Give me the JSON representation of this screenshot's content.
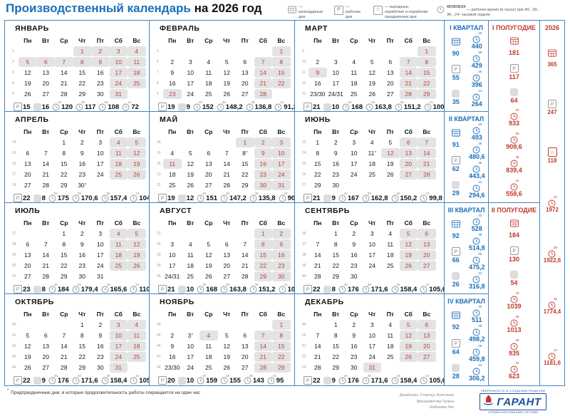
{
  "title": {
    "main": "Производственный календарь",
    "suffix": "на 2026 год"
  },
  "colors": {
    "blue": "#1b6fb8",
    "red": "#c0392b",
    "border": "#4187c3",
    "day_red": "#b8433c",
    "shade": "#e3e3e3",
    "icon_gray": "#8f8f8f"
  },
  "legend": [
    {
      "icon": "calendar-icon",
      "label": "— календарные дни"
    },
    {
      "icon": "workday-icon",
      "label": "— рабочие дни"
    },
    {
      "icon": "star-icon",
      "label": "— выходные, нерабочие и нерабочие праздничные дни"
    },
    {
      "icon": "clock-icon",
      "prefix": "40/39/36/24",
      "label": "— рабочее время (в часах) при 40-, 39-, 36-, 24- часовой неделе"
    }
  ],
  "weekday_headers": [
    "Пн",
    "Вт",
    "Ср",
    "Чт",
    "Пт",
    "Сб",
    "Вс"
  ],
  "hour_labels": [
    "40",
    "39",
    "36",
    "24"
  ],
  "months": [
    {
      "name": "ЯНВАРЬ",
      "weeks": [
        {
          "n": "1",
          "days": [
            "",
            "",
            "",
            "1o",
            "2o",
            "3o",
            "4o"
          ]
        },
        {
          "n": "2",
          "days": [
            "5o",
            "6o",
            "7o",
            "8o",
            "9o",
            "10o",
            "11o"
          ]
        },
        {
          "n": "3",
          "days": [
            "12",
            "13",
            "14",
            "15",
            "16",
            "17o",
            "18o"
          ]
        },
        {
          "n": "4",
          "days": [
            "19",
            "20",
            "21",
            "22",
            "23",
            "24o",
            "25o"
          ]
        },
        {
          "n": "5",
          "days": [
            "26",
            "27",
            "28",
            "29",
            "30",
            "31o",
            ""
          ]
        }
      ],
      "stats": {
        "work": "15",
        "off": "16",
        "h40": "120",
        "h39": "117",
        "h36": "108",
        "h24": "72"
      }
    },
    {
      "name": "ФЕВРАЛЬ",
      "weeks": [
        {
          "n": "5",
          "days": [
            "",
            "",
            "",
            "",
            "",
            "",
            "1o"
          ]
        },
        {
          "n": "6",
          "days": [
            "2",
            "3",
            "4",
            "5",
            "6",
            "7o",
            "8o"
          ]
        },
        {
          "n": "7",
          "days": [
            "9",
            "10",
            "11",
            "12",
            "13",
            "14o",
            "15o"
          ]
        },
        {
          "n": "8",
          "days": [
            "16",
            "17",
            "18",
            "19",
            "20",
            "21o",
            "22o"
          ]
        },
        {
          "n": "9",
          "days": [
            "23o",
            "24",
            "25",
            "26",
            "27",
            "28o",
            ""
          ]
        }
      ],
      "stats": {
        "work": "19",
        "off": "9",
        "h40": "152",
        "h39": "148,2",
        "h36": "136,8",
        "h24": "91,2"
      }
    },
    {
      "name": "МАРТ",
      "weeks": [
        {
          "n": "9",
          "days": [
            "",
            "",
            "",
            "",
            "",
            "",
            "1o"
          ]
        },
        {
          "n": "10",
          "days": [
            "2",
            "3",
            "4",
            "5",
            "6",
            "7o",
            "8o"
          ]
        },
        {
          "n": "11",
          "days": [
            "9o",
            "10",
            "11",
            "12",
            "13",
            "14o",
            "15o"
          ]
        },
        {
          "n": "12",
          "days": [
            "16",
            "17",
            "18",
            "19",
            "20",
            "21o",
            "22o"
          ]
        },
        {
          "n": "13",
          "days": [
            "23/30",
            "24/31",
            "25",
            "26",
            "27",
            "28o",
            "29o"
          ]
        }
      ],
      "stats": {
        "work": "21",
        "off": "10",
        "h40": "168",
        "h39": "163,8",
        "h36": "151,2",
        "h24": "100,8"
      }
    },
    {
      "name": "АПРЕЛЬ",
      "weeks": [
        {
          "n": "14",
          "days": [
            "",
            "",
            "1",
            "2",
            "3",
            "4o",
            "5o"
          ]
        },
        {
          "n": "15",
          "days": [
            "6",
            "7",
            "8",
            "9",
            "10",
            "11o",
            "12o"
          ]
        },
        {
          "n": "16",
          "days": [
            "13",
            "14",
            "15",
            "16",
            "17",
            "18o",
            "19o"
          ]
        },
        {
          "n": "17",
          "days": [
            "20",
            "21",
            "22",
            "23",
            "24",
            "25o",
            "26o"
          ]
        },
        {
          "n": "18",
          "days": [
            "27",
            "28",
            "29",
            "30p",
            "",
            "",
            ""
          ]
        }
      ],
      "stats": {
        "work": "22",
        "off": "8",
        "h40": "175",
        "h39": "170,6",
        "h36": "157,4",
        "h24": "104,6"
      }
    },
    {
      "name": "МАЙ",
      "weeks": [
        {
          "n": "18",
          "days": [
            "",
            "",
            "",
            "",
            "1o",
            "2o",
            "3o"
          ]
        },
        {
          "n": "19",
          "days": [
            "4",
            "5",
            "6",
            "7",
            "8p",
            "9o",
            "10o"
          ]
        },
        {
          "n": "20",
          "days": [
            "11o",
            "12",
            "13",
            "14",
            "15",
            "16o",
            "17o"
          ]
        },
        {
          "n": "21",
          "days": [
            "18",
            "19",
            "20",
            "21",
            "22",
            "23o",
            "24o"
          ]
        },
        {
          "n": "22",
          "days": [
            "25",
            "26",
            "27",
            "28",
            "29",
            "30o",
            "31o"
          ]
        }
      ],
      "stats": {
        "work": "19",
        "off": "12",
        "h40": "151",
        "h39": "147,2",
        "h36": "135,8",
        "h24": "90,2"
      }
    },
    {
      "name": "ИЮНЬ",
      "weeks": [
        {
          "n": "23",
          "days": [
            "1",
            "2",
            "3",
            "4",
            "5",
            "6o",
            "7o"
          ]
        },
        {
          "n": "24",
          "days": [
            "8",
            "9",
            "10",
            "11p",
            "12o",
            "13o",
            "14o"
          ]
        },
        {
          "n": "25",
          "days": [
            "15",
            "16",
            "17",
            "18",
            "19",
            "20o",
            "21o"
          ]
        },
        {
          "n": "26",
          "days": [
            "22",
            "23",
            "24",
            "25",
            "26",
            "27o",
            "28o"
          ]
        },
        {
          "n": "27",
          "days": [
            "29",
            "30",
            "",
            "",
            "",
            "",
            ""
          ]
        }
      ],
      "stats": {
        "work": "21",
        "off": "9",
        "h40": "167",
        "h39": "162,8",
        "h36": "150,2",
        "h24": "99,8"
      }
    },
    {
      "name": "ИЮЛЬ",
      "weeks": [
        {
          "n": "27",
          "days": [
            "",
            "",
            "1",
            "2",
            "3",
            "4o",
            "5o"
          ]
        },
        {
          "n": "28",
          "days": [
            "6",
            "7",
            "8",
            "9",
            "10",
            "11o",
            "12o"
          ]
        },
        {
          "n": "29",
          "days": [
            "13",
            "14",
            "15",
            "16",
            "17",
            "18o",
            "19o"
          ]
        },
        {
          "n": "30",
          "days": [
            "20",
            "21",
            "22",
            "23",
            "24",
            "25o",
            "26o"
          ]
        },
        {
          "n": "31",
          "days": [
            "27",
            "28",
            "29",
            "30",
            "31",
            "",
            ""
          ]
        }
      ],
      "stats": {
        "work": "23",
        "off": "8",
        "h40": "184",
        "h39": "179,4",
        "h36": "165,6",
        "h24": "110,4"
      }
    },
    {
      "name": "АВГУСТ",
      "weeks": [
        {
          "n": "31",
          "days": [
            "",
            "",
            "",
            "",
            "",
            "1o",
            "2o"
          ]
        },
        {
          "n": "32",
          "days": [
            "3",
            "4",
            "5",
            "6",
            "7",
            "8o",
            "9o"
          ]
        },
        {
          "n": "33",
          "days": [
            "10",
            "11",
            "12",
            "13",
            "14",
            "15o",
            "16o"
          ]
        },
        {
          "n": "34",
          "days": [
            "17",
            "18",
            "19",
            "20",
            "21",
            "22o",
            "23o"
          ]
        },
        {
          "n": "35",
          "days": [
            "24/31",
            "25",
            "26",
            "27",
            "28",
            "29o",
            "30o"
          ]
        }
      ],
      "stats": {
        "work": "21",
        "off": "10",
        "h40": "168",
        "h39": "163,8",
        "h36": "151,2",
        "h24": "100,8"
      }
    },
    {
      "name": "СЕНТЯБРЬ",
      "weeks": [
        {
          "n": "36",
          "days": [
            "",
            "1",
            "2",
            "3",
            "4",
            "5o",
            "6o"
          ]
        },
        {
          "n": "37",
          "days": [
            "7",
            "8",
            "9",
            "10",
            "11",
            "12o",
            "13o"
          ]
        },
        {
          "n": "38",
          "days": [
            "14",
            "15",
            "16",
            "17",
            "18",
            "19o",
            "20o"
          ]
        },
        {
          "n": "39",
          "days": [
            "21",
            "22",
            "23",
            "24",
            "25",
            "26o",
            "27o"
          ]
        },
        {
          "n": "40",
          "days": [
            "28",
            "29",
            "30",
            "",
            "",
            "",
            ""
          ]
        }
      ],
      "stats": {
        "work": "22",
        "off": "8",
        "h40": "176",
        "h39": "171,6",
        "h36": "158,4",
        "h24": "105,6"
      }
    },
    {
      "name": "ОКТЯБРЬ",
      "weeks": [
        {
          "n": "40",
          "days": [
            "",
            "",
            "",
            "1",
            "2",
            "3o",
            "4o"
          ]
        },
        {
          "n": "41",
          "days": [
            "5",
            "6",
            "7",
            "8",
            "9",
            "10o",
            "11o"
          ]
        },
        {
          "n": "42",
          "days": [
            "12",
            "13",
            "14",
            "15",
            "16",
            "17o",
            "18o"
          ]
        },
        {
          "n": "43",
          "days": [
            "19",
            "20",
            "21",
            "22",
            "23",
            "24o",
            "25o"
          ]
        },
        {
          "n": "44",
          "days": [
            "26",
            "27",
            "28",
            "29",
            "30",
            "31o",
            ""
          ]
        }
      ],
      "stats": {
        "work": "22",
        "off": "9",
        "h40": "176",
        "h39": "171,6",
        "h36": "158,4",
        "h24": "105,6"
      }
    },
    {
      "name": "НОЯБРЬ",
      "weeks": [
        {
          "n": "44",
          "days": [
            "",
            "",
            "",
            "",
            "",
            "",
            "1o"
          ]
        },
        {
          "n": "45",
          "days": [
            "2",
            "3p",
            "4o",
            "5",
            "6",
            "7o",
            "8o"
          ]
        },
        {
          "n": "46",
          "days": [
            "9",
            "10",
            "11",
            "12",
            "13",
            "14o",
            "15o"
          ]
        },
        {
          "n": "47",
          "days": [
            "16",
            "17",
            "18",
            "19",
            "20",
            "21o",
            "22o"
          ]
        },
        {
          "n": "48",
          "days": [
            "23/30",
            "24",
            "25",
            "26",
            "27",
            "28o",
            "29o"
          ]
        }
      ],
      "stats": {
        "work": "20",
        "off": "10",
        "h40": "159",
        "h39": "155",
        "h36": "143",
        "h24": "95"
      }
    },
    {
      "name": "ДЕКАБРЬ",
      "weeks": [
        {
          "n": "49",
          "days": [
            "",
            "1",
            "2",
            "3",
            "4",
            "5o",
            "6o"
          ]
        },
        {
          "n": "50",
          "days": [
            "7",
            "8",
            "9",
            "10",
            "11",
            "12o",
            "13o"
          ]
        },
        {
          "n": "51",
          "days": [
            "14",
            "15",
            "16",
            "17",
            "18",
            "19o",
            "20o"
          ]
        },
        {
          "n": "52",
          "days": [
            "21",
            "22",
            "23",
            "24",
            "25",
            "26o",
            "27o"
          ]
        },
        {
          "n": "53",
          "days": [
            "28",
            "29",
            "30",
            "31o",
            "",
            "",
            ""
          ]
        }
      ],
      "stats": {
        "work": "22",
        "off": "9",
        "h40": "176",
        "h39": "171,6",
        "h36": "158,4",
        "h24": "105,6"
      }
    }
  ],
  "quarters": [
    {
      "title": "I КВАРТАЛ",
      "cal": "90",
      "work": "55",
      "off": "35",
      "h40": "440",
      "h39": "429",
      "h36": "396",
      "h24": "264"
    },
    {
      "title": "II КВАРТАЛ",
      "cal": "91",
      "work": "62",
      "off": "29",
      "h40": "493",
      "h39": "480,6",
      "h36": "443,4",
      "h24": "294,6"
    },
    {
      "title": "III КВАРТАЛ",
      "cal": "92",
      "work": "66",
      "off": "26",
      "h40": "528",
      "h39": "514,8",
      "h36": "475,2",
      "h24": "316,8"
    },
    {
      "title": "IV КВАРТАЛ",
      "cal": "92",
      "work": "64",
      "off": "28",
      "h40": "511",
      "h39": "498,2",
      "h36": "459,8",
      "h24": "306,2"
    }
  ],
  "halves": [
    {
      "title": "I ПОЛУГОДИЕ",
      "cal": "181",
      "work": "117",
      "off": "64",
      "h40": "933",
      "h39": "909,6",
      "h36": "839,4",
      "h24": "558,6"
    },
    {
      "title": "II ПОЛУГОДИЕ",
      "cal": "184",
      "work": "130",
      "off": "54",
      "h40": "1039",
      "h39": "1013",
      "h36": "935",
      "h24": "623"
    }
  ],
  "year": {
    "title": "2026",
    "cal": "365",
    "work": "247",
    "off": "118",
    "h40": "1972",
    "h39": "1922,6",
    "h36": "1774,4",
    "h24": "1181,6"
  },
  "footnote": {
    "mark": "*",
    "text": "Предпраздничные дни, в которые продолжительность работы сокращается на один час"
  },
  "credits": [
    "Дизайнеры: Сторчаус Анастасия",
    "Миннахметова Галина",
    "Шабанова Лия"
  ],
  "logo": {
    "tagline_top": "УВЕРЕННОСТЬ В СОЗДАНИИ РЕШЕНИЙ",
    "name": "ГАРАНТ",
    "tagline_bottom": "СПРАВОЧНАЯ ПРАВОВАЯ СИСТЕМА"
  }
}
